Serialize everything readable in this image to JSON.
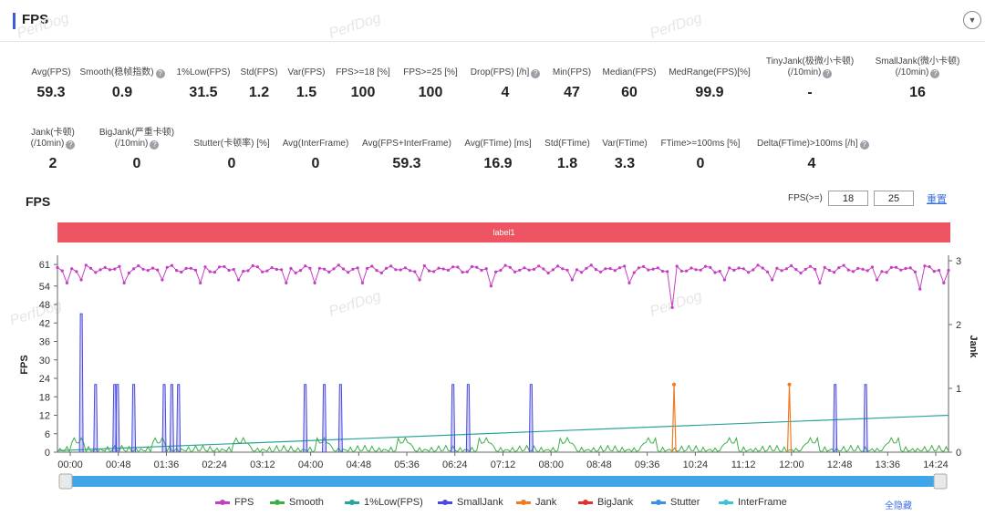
{
  "header": {
    "title": "FPS",
    "collapse_icon": "chevron-down-icon"
  },
  "watermark": "PerfDog",
  "metrics_row1": [
    {
      "label": "Avg(FPS)",
      "value": "59.3",
      "help": false
    },
    {
      "label": "Smooth(稳帧指数)",
      "value": "0.9",
      "help": true
    },
    {
      "label": "1%Low(FPS)",
      "value": "31.5",
      "help": false
    },
    {
      "label": "Std(FPS)",
      "value": "1.2",
      "help": false
    },
    {
      "label": "Var(FPS)",
      "value": "1.5",
      "help": false
    },
    {
      "label": "FPS>=18 [%]",
      "value": "100",
      "help": false
    },
    {
      "label": "FPS>=25 [%]",
      "value": "100",
      "help": false
    },
    {
      "label": "Drop(FPS) [/h]",
      "value": "4",
      "help": true
    },
    {
      "label": "Min(FPS)",
      "value": "47",
      "help": false
    },
    {
      "label": "Median(FPS)",
      "value": "60",
      "help": false
    },
    {
      "label": "MedRange(FPS)[%]",
      "value": "99.9",
      "help": false
    },
    {
      "label": "TinyJank(极微小卡顿)",
      "label2": "(/10min)",
      "value": "-",
      "help": true
    },
    {
      "label": "SmallJank(微小卡顿)",
      "label2": "(/10min)",
      "value": "16",
      "help": true
    }
  ],
  "metrics_row2": [
    {
      "label": "Jank(卡顿)",
      "label2": "(/10min)",
      "value": "2",
      "help": true
    },
    {
      "label": "BigJank(严重卡顿)",
      "label2": "(/10min)",
      "value": "0",
      "help": true
    },
    {
      "label": "Stutter(卡顿率) [%]",
      "value": "0",
      "help": false
    },
    {
      "label": "Avg(InterFrame)",
      "value": "0",
      "help": false
    },
    {
      "label": "Avg(FPS+InterFrame)",
      "value": "59.3",
      "help": false
    },
    {
      "label": "Avg(FTime) [ms]",
      "value": "16.9",
      "help": false
    },
    {
      "label": "Std(FTime)",
      "value": "1.8",
      "help": false
    },
    {
      "label": "Var(FTime)",
      "value": "3.3",
      "help": false
    },
    {
      "label": "FTime>=100ms [%]",
      "value": "0",
      "help": false
    },
    {
      "label": "Delta(FTime)>100ms [/h]",
      "value": "4",
      "help": true
    }
  ],
  "chart_section": {
    "title": "FPS",
    "threshold_label": "FPS(>=)",
    "threshold_1": "18",
    "threshold_2": "25",
    "reset_label": "重置",
    "band_label": "label1",
    "hide_all_label": "全隐藏"
  },
  "chart_data": {
    "type": "line",
    "ylabel": "FPS",
    "y2label": "Jank",
    "yticks": [
      0,
      6,
      12,
      18,
      24,
      30,
      36,
      42,
      48,
      54,
      61
    ],
    "ylim": [
      0,
      64
    ],
    "y2ticks": [
      0,
      1,
      2,
      3
    ],
    "y2lim": [
      0,
      3
    ],
    "xticks": [
      "00:00",
      "00:48",
      "01:36",
      "02:24",
      "03:12",
      "04:00",
      "04:48",
      "05:36",
      "06:24",
      "07:12",
      "08:00",
      "08:48",
      "09:36",
      "10:24",
      "11:12",
      "12:00",
      "12:48",
      "13:36",
      "14:24"
    ],
    "x_range_seconds": [
      0,
      935
    ],
    "legend_position": "bottom",
    "series": [
      {
        "name": "FPS",
        "color": "#c63fc3",
        "baseline": 59.5,
        "dips": [
          {
            "t": 10,
            "v": 55
          },
          {
            "t": 25,
            "v": 56
          },
          {
            "t": 70,
            "v": 55
          },
          {
            "t": 110,
            "v": 56
          },
          {
            "t": 148,
            "v": 55
          },
          {
            "t": 190,
            "v": 56
          },
          {
            "t": 240,
            "v": 55
          },
          {
            "t": 272,
            "v": 55
          },
          {
            "t": 318,
            "v": 55
          },
          {
            "t": 380,
            "v": 56
          },
          {
            "t": 455,
            "v": 54
          },
          {
            "t": 540,
            "v": 56
          },
          {
            "t": 600,
            "v": 55
          },
          {
            "t": 647,
            "v": 47
          },
          {
            "t": 700,
            "v": 56
          },
          {
            "t": 750,
            "v": 56
          },
          {
            "t": 800,
            "v": 55
          },
          {
            "t": 860,
            "v": 56
          },
          {
            "t": 906,
            "v": 53
          },
          {
            "t": 930,
            "v": 55
          }
        ]
      },
      {
        "name": "Smooth",
        "color": "#3fae49"
      },
      {
        "name": "1%Low(FPS)",
        "color": "#2aa49b",
        "start": 0.5,
        "end": 12
      },
      {
        "name": "SmallJank",
        "color": "#4a4ae0",
        "spikes": [
          {
            "t": 25,
            "v": 45
          },
          {
            "t": 40,
            "v": 22
          },
          {
            "t": 60,
            "v": 22
          },
          {
            "t": 63,
            "v": 22
          },
          {
            "t": 80,
            "v": 22
          },
          {
            "t": 112,
            "v": 22
          },
          {
            "t": 120,
            "v": 22
          },
          {
            "t": 127,
            "v": 22
          },
          {
            "t": 260,
            "v": 22
          },
          {
            "t": 280,
            "v": 22
          },
          {
            "t": 297,
            "v": 22
          },
          {
            "t": 415,
            "v": 22
          },
          {
            "t": 431,
            "v": 22
          },
          {
            "t": 497,
            "v": 22
          },
          {
            "t": 816,
            "v": 22
          },
          {
            "t": 848,
            "v": 22
          }
        ]
      },
      {
        "name": "Jank",
        "color": "#f07b21",
        "spikes": [
          {
            "t": 647,
            "v": 22
          },
          {
            "t": 768,
            "v": 22
          }
        ]
      },
      {
        "name": "BigJank",
        "color": "#e0332c"
      },
      {
        "name": "Stutter",
        "color": "#3c8ee6"
      },
      {
        "name": "InterFrame",
        "color": "#3ec3d6"
      }
    ]
  }
}
